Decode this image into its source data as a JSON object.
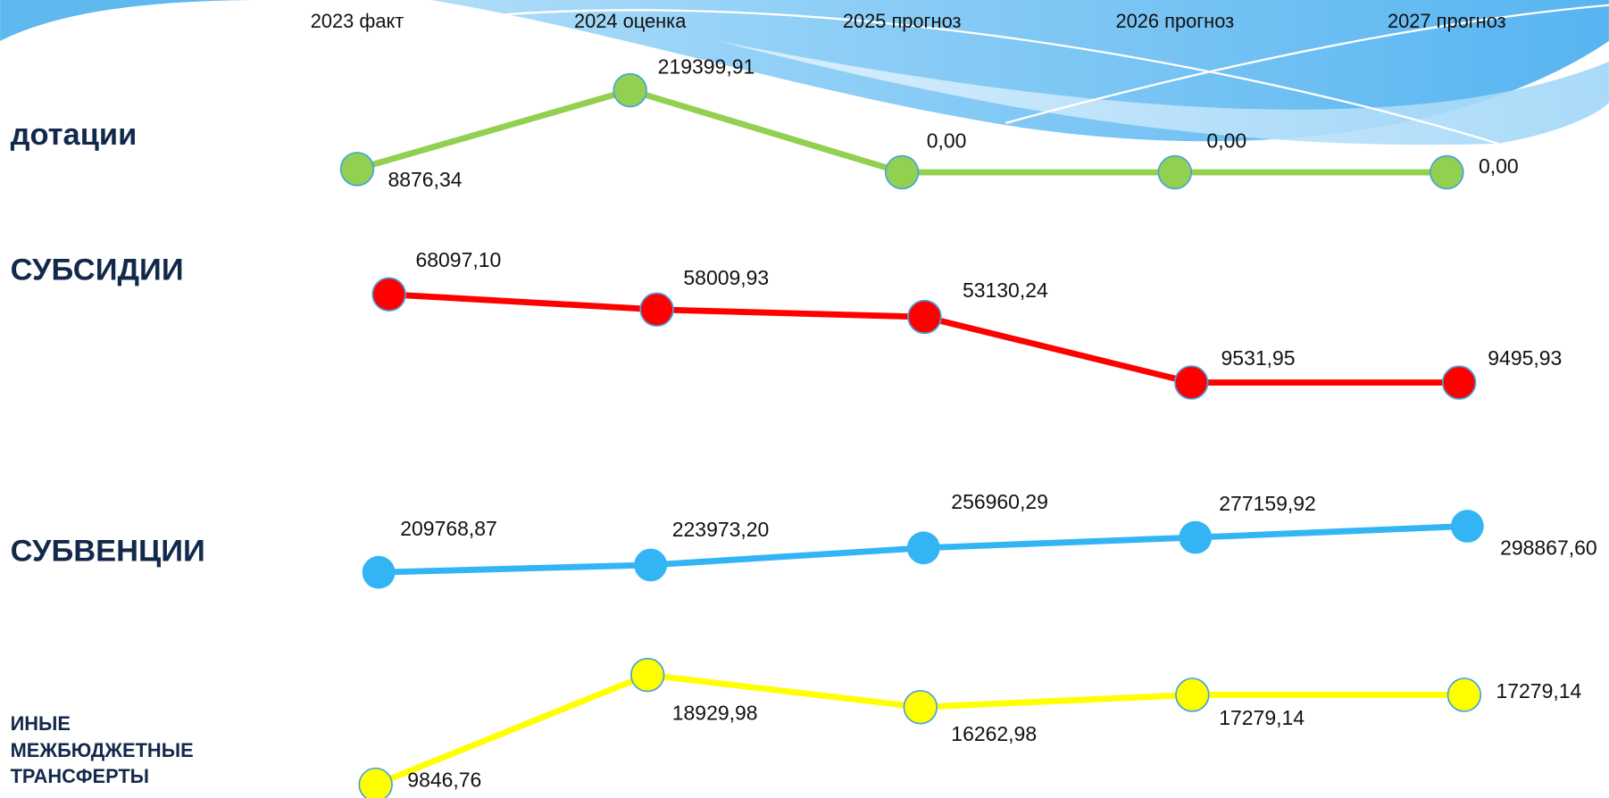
{
  "chart_data": [
    {
      "type": "line",
      "title": "дотации",
      "categories": [
        "2023 факт",
        "2024 оценка",
        "2025 прогноз",
        "2026 прогноз",
        "2027 прогноз"
      ],
      "series": [
        {
          "name": "дотации",
          "color": "#92d050",
          "values": [
            8876.34,
            219399.91,
            0,
            0,
            0
          ],
          "value_labels": [
            "8876,34",
            "219399,91",
            "0,00",
            "0,00",
            "0,00"
          ]
        }
      ]
    },
    {
      "type": "line",
      "title": "СУБСИДИИ",
      "series": [
        {
          "name": "СУБСИДИИ",
          "color": "#ff0000",
          "values": [
            68097.1,
            58009.93,
            53130.24,
            9531.95,
            9495.93
          ],
          "value_labels": [
            "68097,10",
            "58009,93",
            "53130,24",
            "9531,95",
            "9495,93"
          ]
        }
      ]
    },
    {
      "type": "line",
      "title": "СУБВЕНЦИИ",
      "series": [
        {
          "name": "СУБВЕНЦИИ",
          "color": "#33b5f5",
          "values": [
            209768.87,
            223973.2,
            256960.29,
            277159.92,
            298867.6
          ],
          "value_labels": [
            "209768,87",
            "223973,20",
            "256960,29",
            "277159,92",
            "298867,60"
          ]
        }
      ]
    },
    {
      "type": "line",
      "title": "ИНЫЕ МЕЖБЮДЖЕТНЫЕ ТРАНСФЕРТЫ",
      "series": [
        {
          "name": "ИНЫЕ МЕЖБЮДЖЕТНЫЕ ТРАНСФЕРТЫ",
          "color": "#ffff00",
          "values": [
            9846.76,
            18929.98,
            16262.98,
            17279.14,
            17279.14
          ],
          "value_labels": [
            "9846,76",
            "18929,98",
            "16262,98",
            "17279,14",
            "17279,14"
          ]
        }
      ]
    }
  ]
}
